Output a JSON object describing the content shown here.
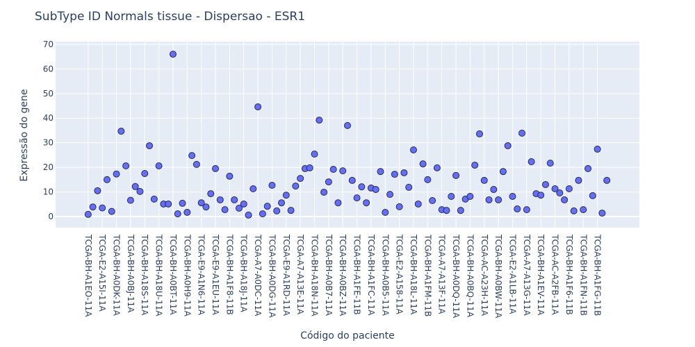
{
  "chart_data": {
    "type": "scatter",
    "title": "SubType ID Normals tissue - Dispersao - ESR1",
    "x_label": "Código do paciente",
    "y_label": "Expressão do gene",
    "categories": [
      "TCGA-BH-A1EO-11A",
      null,
      null,
      "TCGA-E2-A15I-11A",
      null,
      null,
      "TCGA-BH-A0DK-11A",
      null,
      null,
      "TCGA-BH-A0BJ-11A",
      null,
      null,
      "TCGA-BH-A18S-11A",
      null,
      null,
      "TCGA-BH-A18U-11A",
      null,
      null,
      "TCGA-BH-A0BT-11A",
      null,
      null,
      "TCGA-BH-A0H9-11A",
      null,
      null,
      "TCGA-E9-A1N6-11A",
      null,
      null,
      "TCGA-E9-A1EU-11A",
      null,
      null,
      "TCGA-BH-A1F8-11B",
      null,
      null,
      "TCGA-BH-A18J-11A",
      null,
      null,
      "TCGA-A7-A0DC-11A",
      null,
      null,
      "TCGA-BH-A0DG-11A",
      null,
      null,
      "TCGA-E9-A1RD-11A",
      null,
      null,
      "TCGA-A7-A13E-11A",
      null,
      null,
      "TCGA-BH-A18N-11A",
      null,
      null,
      "TCGA-BH-A0B7-11A",
      null,
      null,
      "TCGA-BH-A0BZ-11A",
      null,
      null,
      "TCGA-BH-A1FE-11B",
      null,
      null,
      "TCGA-BH-A1FC-11A",
      null,
      null,
      "TCGA-BH-A0B5-11A",
      null,
      null,
      "TCGA-E2-A158-11A",
      null,
      null,
      "TCGA-BH-A18L-11A",
      null,
      null,
      "TCGA-BH-A1FM-11B",
      null,
      null,
      "TCGA-A7-A13F-11A",
      null,
      null,
      "TCGA-BH-A0DQ-11A",
      null,
      null,
      "TCGA-BH-A0BQ-11A",
      null,
      null,
      "TCGA-AC-A23H-11A",
      null,
      null,
      "TCGA-BH-A0BW-11A",
      null,
      null,
      "TCGA-E2-A1LB-11A",
      null,
      null,
      "TCGA-A7-A13G-11A",
      null,
      null,
      "TCGA-BH-A1EV-11A",
      null,
      null,
      "TCGA-AC-A2FB-11A",
      null,
      null,
      "TCGA-BH-A1F6-11B",
      null,
      null,
      "TCGA-BH-A1FN-11B",
      null,
      null,
      "TCGA-BH-A1FG-11B",
      null,
      null
    ],
    "values": [
      0.9,
      3.9,
      10.5,
      3.5,
      15.0,
      2.1,
      17.3,
      34.7,
      20.6,
      6.6,
      12.2,
      10.2,
      17.5,
      28.8,
      7.1,
      20.6,
      5.1,
      5.1,
      66.0,
      1.1,
      5.4,
      1.7,
      24.8,
      21.2,
      5.6,
      3.9,
      9.3,
      19.5,
      6.8,
      2.8,
      16.4,
      6.8,
      3.4,
      5.1,
      0.6,
      11.3,
      44.6,
      1.1,
      4.2,
      12.7,
      2.3,
      5.6,
      8.7,
      2.5,
      12.4,
      15.5,
      19.5,
      19.8,
      25.4,
      39.2,
      9.9,
      14.1,
      19.2,
      5.6,
      18.6,
      37.0,
      14.7,
      7.6,
      12.1,
      5.6,
      11.6,
      11.0,
      18.3,
      1.7,
      9.0,
      17.2,
      4.0,
      17.8,
      11.9,
      27.1,
      5.1,
      21.4,
      15.0,
      6.5,
      19.8,
      2.8,
      2.5,
      8.2,
      16.7,
      2.5,
      7.1,
      8.2,
      20.9,
      33.6,
      14.7,
      6.8,
      11.0,
      6.8,
      18.3,
      28.8,
      8.2,
      3.1,
      33.9,
      2.8,
      22.3,
      9.3,
      8.7,
      13.0,
      21.7,
      11.3,
      9.6,
      6.8,
      11.3,
      2.3,
      14.7,
      2.8,
      19.5,
      8.5,
      27.4,
      1.4,
      14.7
    ],
    "color": "#636efa",
    "ylim": [
      -4.5,
      71.1
    ],
    "yticks": [
      0,
      10,
      20,
      30,
      40,
      50,
      60,
      70
    ],
    "grid": true
  }
}
